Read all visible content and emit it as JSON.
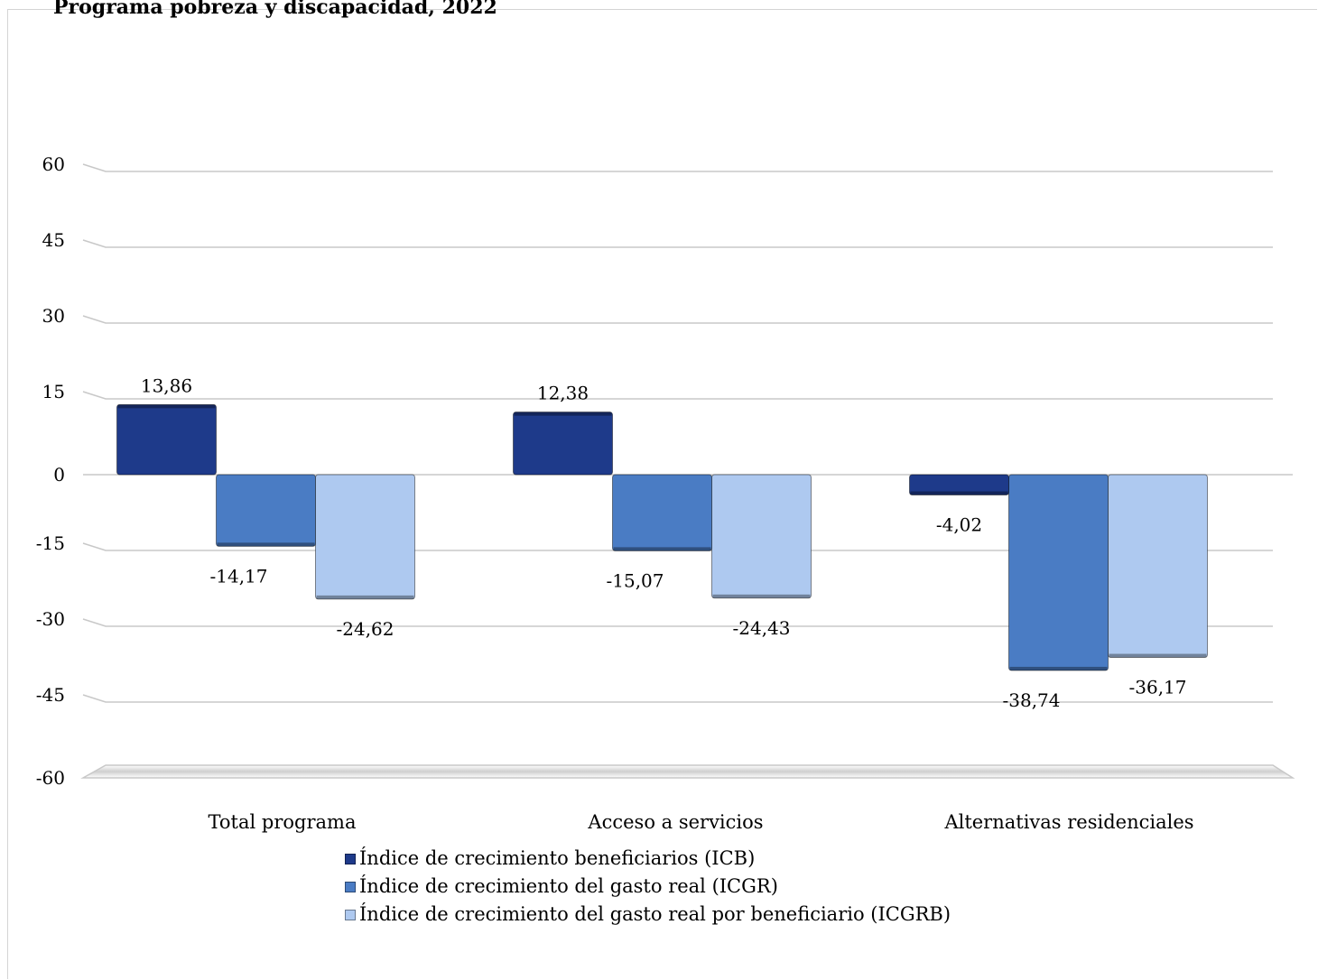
{
  "title": "Programa pobreza y discapacidad, 2022",
  "colors": {
    "ICB": "#1e3a8a",
    "ICGR": "#4a7cc4",
    "ICGRB": "#aec9f0",
    "grid": "#c8c8c8"
  },
  "chart_data": {
    "type": "bar",
    "title": "Programa pobreza y discapacidad, 2022",
    "categories": [
      "Total programa",
      "Acceso a servicios",
      "Alternativas residenciales"
    ],
    "series": [
      {
        "name": "Índice de crecimiento beneficiarios (ICB)",
        "values": [
          13.86,
          12.38,
          -4.02
        ],
        "labels": [
          "13,86",
          "12,38",
          "-4,02"
        ]
      },
      {
        "name": "Índice de crecimiento del gasto real (ICGR)",
        "values": [
          -14.17,
          -15.07,
          -38.74
        ],
        "labels": [
          "-14,17",
          "-15,07",
          "-38,74"
        ]
      },
      {
        "name": "Índice de crecimiento del gasto real por beneficiario (ICGRB)",
        "values": [
          -24.62,
          -24.43,
          -36.17
        ],
        "labels": [
          "-24,62",
          "-24,43",
          "-36,17"
        ]
      }
    ],
    "yticks": [
      60,
      45,
      30,
      15,
      0,
      -15,
      -30,
      -45,
      -60
    ],
    "ytick_labels": [
      "60",
      "45",
      "30",
      "15",
      "0",
      "-15",
      "-30",
      "-45",
      "-60"
    ],
    "ylim": [
      -60,
      60
    ],
    "grid": true,
    "legend_position": "bottom"
  }
}
